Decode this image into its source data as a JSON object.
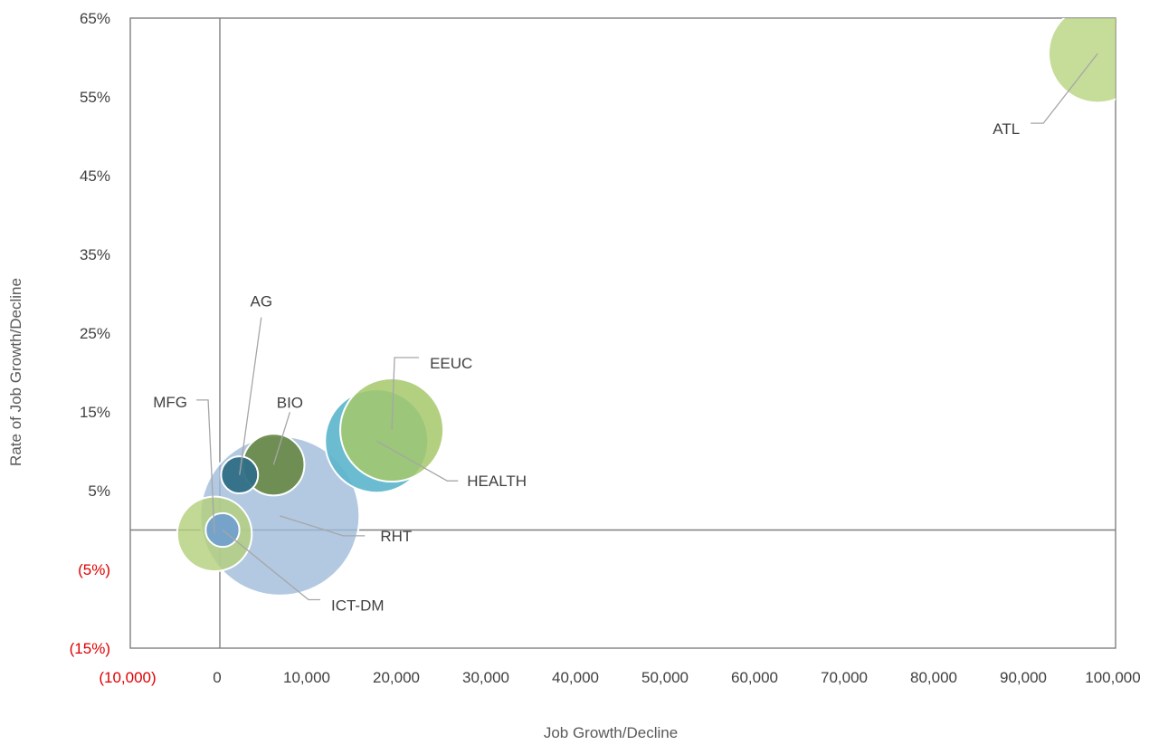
{
  "chart_data": {
    "type": "bubble",
    "xlabel": "Job Growth/Decline",
    "ylabel": "Rate of Job Growth/Decline",
    "xlim": [
      -10000,
      100000
    ],
    "ylim": [
      -0.15,
      0.65
    ],
    "x_ticks": [
      {
        "value": -10000,
        "label": "(10,000)",
        "negative": true
      },
      {
        "value": 0,
        "label": "0",
        "negative": false
      },
      {
        "value": 10000,
        "label": "10,000",
        "negative": false
      },
      {
        "value": 20000,
        "label": "20,000",
        "negative": false
      },
      {
        "value": 30000,
        "label": "30,000",
        "negative": false
      },
      {
        "value": 40000,
        "label": "40,000",
        "negative": false
      },
      {
        "value": 50000,
        "label": "50,000",
        "negative": false
      },
      {
        "value": 60000,
        "label": "60,000",
        "negative": false
      },
      {
        "value": 70000,
        "label": "70,000",
        "negative": false
      },
      {
        "value": 80000,
        "label": "80,000",
        "negative": false
      },
      {
        "value": 90000,
        "label": "90,000",
        "negative": false
      },
      {
        "value": 100000,
        "label": "100,000",
        "negative": false
      }
    ],
    "y_ticks": [
      {
        "value": 0.65,
        "label": "65%",
        "negative": false
      },
      {
        "value": 0.55,
        "label": "55%",
        "negative": false
      },
      {
        "value": 0.45,
        "label": "45%",
        "negative": false
      },
      {
        "value": 0.35,
        "label": "35%",
        "negative": false
      },
      {
        "value": 0.25,
        "label": "25%",
        "negative": false
      },
      {
        "value": 0.15,
        "label": "15%",
        "negative": false
      },
      {
        "value": 0.05,
        "label": "5%",
        "negative": false
      },
      {
        "value": -0.05,
        "label": "(5%)",
        "negative": true
      },
      {
        "value": -0.15,
        "label": "(15%)",
        "negative": true
      }
    ],
    "series": [
      {
        "name": "RHT",
        "x": 6700,
        "y": 0.018,
        "size": 1.0,
        "color": "#9dbad9",
        "opacity": 0.78
      },
      {
        "name": "MFG",
        "x": -600,
        "y": -0.005,
        "size": 0.22,
        "color": "#b3d07a",
        "opacity": 0.8
      },
      {
        "name": "ICT-DM",
        "x": 300,
        "y": 0.0,
        "size": 0.045,
        "color": "#6f9fd0",
        "opacity": 0.9
      },
      {
        "name": "AG",
        "x": 2200,
        "y": 0.07,
        "size": 0.054,
        "color": "#2f6f86",
        "opacity": 0.95
      },
      {
        "name": "BIO",
        "x": 6000,
        "y": 0.083,
        "size": 0.15,
        "color": "#6b8b4b",
        "opacity": 0.95
      },
      {
        "name": "HEALTH",
        "x": 17500,
        "y": 0.113,
        "size": 0.42,
        "color": "#5bb5cc",
        "opacity": 0.9
      },
      {
        "name": "EEUC",
        "x": 19200,
        "y": 0.127,
        "size": 0.42,
        "color": "#a4c86a",
        "opacity": 0.85
      },
      {
        "name": "ATL",
        "x": 98000,
        "y": 0.605,
        "size": 0.38,
        "color": "#b7d47f",
        "opacity": 0.8
      }
    ],
    "labels": [
      {
        "series": "RHT",
        "text": "RHT"
      },
      {
        "series": "MFG",
        "text": "MFG"
      },
      {
        "series": "ICT-DM",
        "text": "ICT-DM"
      },
      {
        "series": "AG",
        "text": "AG"
      },
      {
        "series": "BIO",
        "text": "BIO"
      },
      {
        "series": "HEALTH",
        "text": "HEALTH"
      },
      {
        "series": "EEUC",
        "text": "EEUC"
      },
      {
        "series": "ATL",
        "text": "ATL"
      }
    ],
    "grid": false,
    "legend": "none"
  }
}
